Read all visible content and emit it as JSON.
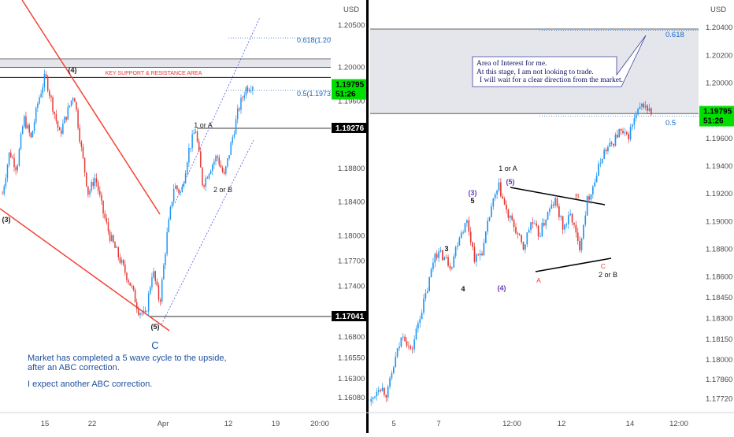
{
  "colors": {
    "up": "#2196f3",
    "down": "#e53935",
    "trendline": "#f44336",
    "channel": "#4a5cd9",
    "fib": "#1565c0",
    "zone": "#d9dbe3",
    "tag_green": "#00e000",
    "tag_black": "#000000",
    "divider": "#000000",
    "wave_purple": "#6a3cb0",
    "wave_red": "#e53935"
  },
  "chart_data": [
    {
      "type": "candlestick",
      "currency": "USD",
      "ylim": [
        1.159,
        1.208
      ],
      "y_ticks": [
        "1.20500",
        "1.20000",
        "1.19600",
        "1.18800",
        "1.18400",
        "1.18000",
        "1.17700",
        "1.17400",
        "1.16800",
        "1.16550",
        "1.16300",
        "1.16080"
      ],
      "x_ticks": [
        "15",
        "22",
        "Apr",
        "12",
        "19",
        "20:00"
      ],
      "price_tags": [
        {
          "value": 1.19795,
          "label": "1.19795",
          "sub": "51:26",
          "style": "green"
        },
        {
          "value": 1.19276,
          "label": "1.19276",
          "style": "black"
        },
        {
          "value": 1.17041,
          "label": "1.17041",
          "style": "black"
        }
      ],
      "fib_levels": [
        {
          "label": "0.618(1.203",
          "value": 1.2035
        },
        {
          "label": "0.5(1.19732",
          "value": 1.1973
        }
      ],
      "zone": {
        "label": "KEY SUPPORT & RESISTANCE AREA",
        "from": 1.2,
        "to": 1.201
      },
      "horizontal_lines": [
        1.1988,
        1.19276,
        1.17041
      ],
      "wave_labels": [
        "(4)",
        "(3)",
        "(5)",
        "C",
        "1 or A",
        "2 or B"
      ],
      "note_lines": [
        "Market has completed a 5 wave cycle to the upside,",
        "after an ABC correction.",
        "I expect another ABC correction."
      ],
      "trend": [
        1.185,
        1.19,
        1.188,
        1.194,
        1.1915,
        1.196,
        1.199,
        1.1955,
        1.192,
        1.1945,
        1.197,
        1.1905,
        1.185,
        1.187,
        1.183,
        1.18,
        1.178,
        1.176,
        1.174,
        1.1712,
        1.1704,
        1.176,
        1.172,
        1.18,
        1.186,
        1.185,
        1.19,
        1.1927,
        1.186,
        1.188,
        1.1895,
        1.187,
        1.191,
        1.195,
        1.1975,
        1.198
      ]
    },
    {
      "type": "candlestick",
      "currency": "USD",
      "ylim": [
        1.1762,
        1.206
      ],
      "y_ticks": [
        "1.20400",
        "1.20200",
        "1.20000",
        "1.19800",
        "1.19600",
        "1.19400",
        "1.19200",
        "1.19000",
        "1.18800",
        "1.18600",
        "1.18450",
        "1.18300",
        "1.18150",
        "1.18000",
        "1.17860",
        "1.17720"
      ],
      "x_ticks": [
        "5",
        "7",
        "12:00",
        "12",
        "14",
        "12:00"
      ],
      "price_tags": [
        {
          "value": 1.19795,
          "label": "1.19795",
          "sub": "51:26",
          "style": "green"
        }
      ],
      "fib_levels": [
        {
          "label": "0.618",
          "value": 1.2038
        },
        {
          "label": "0.5",
          "value": 1.1976
        }
      ],
      "zone": {
        "from": 1.1978,
        "to": 1.2039
      },
      "callout_lines": [
        "Area of Interest for me.",
        "At this stage, I am not looking to trade.",
        "I will wait for a clear direction from the market."
      ],
      "wave_labels": [
        "3",
        "4",
        "(3)",
        "5",
        "(4)",
        "(5)",
        "1 or A",
        "A",
        "B",
        "C",
        "2 or B"
      ],
      "trend": [
        1.177,
        1.1782,
        1.1775,
        1.18,
        1.182,
        1.1805,
        1.183,
        1.185,
        1.1878,
        1.1875,
        1.1868,
        1.189,
        1.19,
        1.1872,
        1.188,
        1.191,
        1.1925,
        1.1905,
        1.1895,
        1.188,
        1.19,
        1.189,
        1.1905,
        1.1915,
        1.1895,
        1.1905,
        1.188,
        1.1915,
        1.193,
        1.195,
        1.1955,
        1.1965,
        1.196,
        1.1975,
        1.1985,
        1.1978
      ]
    }
  ]
}
